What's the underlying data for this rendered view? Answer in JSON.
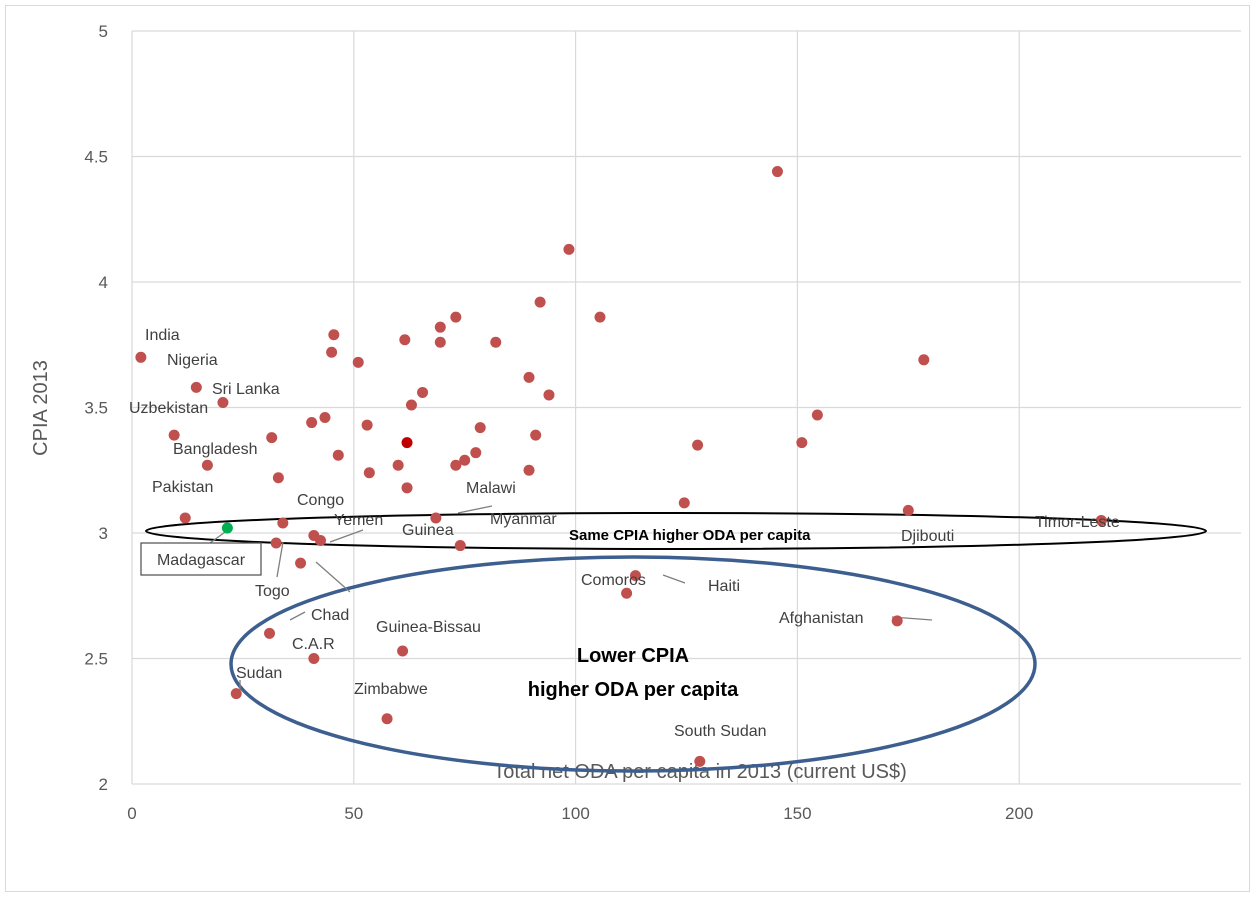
{
  "chart_data": {
    "type": "scatter",
    "title": "",
    "xlabel": "Total net ODA per capita in 2013 (current US$)",
    "ylabel": "CPIA 2013",
    "xlim": [
      0,
      250
    ],
    "ylim": [
      2,
      5
    ],
    "xticks": [
      "0",
      "50",
      "100",
      "150",
      "200"
    ],
    "xtick_values": [
      0,
      50,
      100,
      150,
      200
    ],
    "yticks": [
      "2",
      "2.5",
      "3",
      "3.5",
      "4",
      "4.5",
      "5"
    ],
    "ytick_values": [
      2,
      2.5,
      3,
      3.5,
      4,
      4.5,
      5
    ],
    "grid": true,
    "colors": {
      "points": "#c0504d",
      "highlight": "#c00000",
      "madagascar": "#00b050",
      "ellipse_lower": "#3d5f8f",
      "ellipse_same": "#000000",
      "grid": "#d9d9d9",
      "leader": "#7f7f7f"
    },
    "points": [
      {
        "x": 145.5,
        "y": 4.44
      },
      {
        "x": 98.5,
        "y": 4.13
      },
      {
        "x": 92,
        "y": 3.92
      },
      {
        "x": 105.5,
        "y": 3.86
      },
      {
        "x": 73,
        "y": 3.86
      },
      {
        "x": 69.5,
        "y": 3.82
      },
      {
        "x": 45.5,
        "y": 3.79
      },
      {
        "x": 61.5,
        "y": 3.77
      },
      {
        "x": 69.5,
        "y": 3.76
      },
      {
        "x": 82,
        "y": 3.76
      },
      {
        "x": 45,
        "y": 3.72
      },
      {
        "x": 51,
        "y": 3.68
      },
      {
        "x": 178.5,
        "y": 3.69
      },
      {
        "x": 2,
        "y": 3.7
      },
      {
        "x": 89.5,
        "y": 3.62
      },
      {
        "x": 14.5,
        "y": 3.58
      },
      {
        "x": 65.5,
        "y": 3.56
      },
      {
        "x": 94,
        "y": 3.55
      },
      {
        "x": 20.5,
        "y": 3.52
      },
      {
        "x": 63,
        "y": 3.51
      },
      {
        "x": 154.5,
        "y": 3.47
      },
      {
        "x": 43.5,
        "y": 3.46
      },
      {
        "x": 40.5,
        "y": 3.44
      },
      {
        "x": 53,
        "y": 3.43
      },
      {
        "x": 78.5,
        "y": 3.42
      },
      {
        "x": 9.5,
        "y": 3.39
      },
      {
        "x": 91,
        "y": 3.39
      },
      {
        "x": 31.5,
        "y": 3.38
      },
      {
        "x": 151,
        "y": 3.36
      },
      {
        "x": 127.5,
        "y": 3.35
      },
      {
        "x": 77.5,
        "y": 3.32
      },
      {
        "x": 46.5,
        "y": 3.31
      },
      {
        "x": 75,
        "y": 3.29
      },
      {
        "x": 17,
        "y": 3.27
      },
      {
        "x": 60,
        "y": 3.27
      },
      {
        "x": 73,
        "y": 3.27
      },
      {
        "x": 89.5,
        "y": 3.25
      },
      {
        "x": 53.5,
        "y": 3.24
      },
      {
        "x": 33,
        "y": 3.22
      },
      {
        "x": 62,
        "y": 3.18
      },
      {
        "x": 124.5,
        "y": 3.12
      },
      {
        "x": 175,
        "y": 3.09
      },
      {
        "x": 68.5,
        "y": 3.06
      },
      {
        "x": 12,
        "y": 3.06
      },
      {
        "x": 218.5,
        "y": 3.05
      },
      {
        "x": 34,
        "y": 3.04
      },
      {
        "x": 41,
        "y": 2.99
      },
      {
        "x": 42.5,
        "y": 2.97
      },
      {
        "x": 32.5,
        "y": 2.96
      },
      {
        "x": 74,
        "y": 2.95
      },
      {
        "x": 38,
        "y": 2.88
      },
      {
        "x": 113.5,
        "y": 2.83
      },
      {
        "x": 111.5,
        "y": 2.76
      },
      {
        "x": 172.5,
        "y": 2.65
      },
      {
        "x": 31,
        "y": 2.6
      },
      {
        "x": 61,
        "y": 2.53
      },
      {
        "x": 41,
        "y": 2.5
      },
      {
        "x": 23.5,
        "y": 2.36
      },
      {
        "x": 57.5,
        "y": 2.26
      },
      {
        "x": 128,
        "y": 2.09
      }
    ],
    "highlight_point": {
      "x": 62,
      "y": 3.36
    },
    "madagascar_point": {
      "x": 21.5,
      "y": 3.02
    },
    "labels": {
      "india": "India",
      "nigeria": "Nigeria",
      "sri_lanka": "Sri Lanka",
      "uzbekistan": "Uzbekistan",
      "bangladesh": "Bangladesh",
      "pakistan": "Pakistan",
      "congo": "Congo",
      "yemen": "Yemen",
      "guinea": "Guinea",
      "malawi": "Malawi",
      "myanmar": "Myanmar",
      "madagascar": "Madagascar",
      "togo": "Togo",
      "chad": "Chad",
      "car": "C.A.R",
      "sudan": "Sudan",
      "guinea_bissau": "Guinea-Bissau",
      "zimbabwe": "Zimbabwe",
      "comoros": "Comoros",
      "haiti": "Haiti",
      "afghanistan": "Afghanistan",
      "south_sudan": "South Sudan",
      "djibouti": "Djibouti",
      "timor_leste": "Timor-Leste"
    },
    "annotations": {
      "same_cpia": "Same CPIA higher ODA per capita",
      "lower_cpia_line1": "Lower CPIA",
      "lower_cpia_line2": "higher ODA per capita"
    }
  }
}
